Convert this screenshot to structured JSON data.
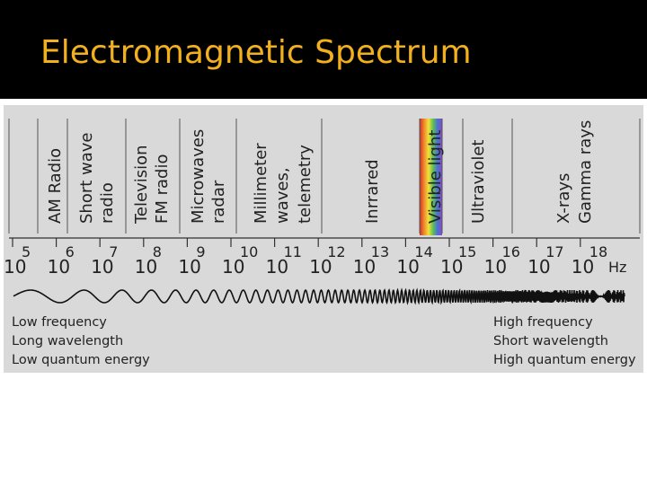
{
  "title": "Electromagnetic Spectrum",
  "bands": [
    {
      "lines": [
        "AM Radio"
      ]
    },
    {
      "lines": [
        "Short wave",
        "radio"
      ]
    },
    {
      "lines": [
        "Television",
        "FM radio"
      ]
    },
    {
      "lines": [
        "Microwaves",
        "radar"
      ]
    },
    {
      "lines": [
        "Millimeter",
        "waves,",
        "telemetry"
      ]
    },
    {
      "lines": [
        "Inrrared"
      ]
    },
    {
      "lines": [
        "Visible light"
      ]
    },
    {
      "lines": [
        "Ultraviolet"
      ]
    },
    {
      "lines": [
        "X-rays",
        "Gamma rays"
      ]
    }
  ],
  "scale": {
    "base": "10",
    "exponents": [
      5,
      6,
      7,
      8,
      9,
      10,
      11,
      12,
      13,
      14,
      15,
      16,
      17,
      18
    ],
    "unit": "Hz"
  },
  "left_labels": [
    "Low frequency",
    "Long wavelength",
    "Low quantum energy"
  ],
  "right_labels": [
    "High frequency",
    "Short wavelength",
    "High quantum energy"
  ]
}
